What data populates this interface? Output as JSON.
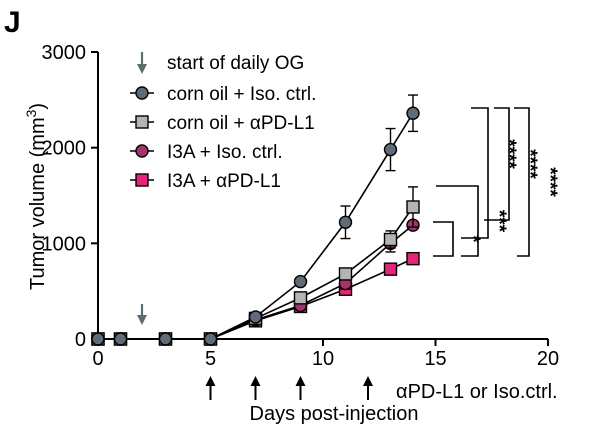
{
  "panel_label": "J",
  "chart_data": {
    "type": "line",
    "xlabel": "Days post-injection",
    "ylabel": "Tumor volume (mm",
    "ylabel_sup": "3",
    "ylabel_close": ")",
    "xlim": [
      0,
      20
    ],
    "ylim": [
      0,
      3000
    ],
    "xticks": [
      0,
      5,
      10,
      15,
      20
    ],
    "yticks": [
      0,
      1000,
      2000,
      3000
    ],
    "x": [
      0,
      1,
      3,
      5,
      7,
      9,
      11,
      13,
      14
    ],
    "series": [
      {
        "name": "corn oil + Iso. ctrl.",
        "marker": "circle",
        "color": "#5f6c78",
        "values": [
          0,
          0,
          0,
          0,
          230,
          600,
          1220,
          1980,
          2360
        ],
        "err": [
          0,
          0,
          0,
          0,
          25,
          40,
          170,
          220,
          190
        ]
      },
      {
        "name": "corn oil + αPD-L1",
        "marker": "square",
        "color": "#b4b4b4",
        "values": [
          0,
          0,
          0,
          0,
          215,
          430,
          680,
          1040,
          1380
        ],
        "err": [
          0,
          0,
          0,
          0,
          20,
          30,
          60,
          90,
          210
        ]
      },
      {
        "name": "I3A + Iso. ctrl.",
        "marker": "circle",
        "color": "#a8326c",
        "values": [
          0,
          0,
          0,
          0,
          200,
          350,
          580,
          1000,
          1190
        ],
        "err": [
          0,
          0,
          0,
          0,
          20,
          30,
          60,
          90,
          20
        ]
      },
      {
        "name": "I3A + αPD-L1",
        "marker": "square",
        "color": "#e8237b",
        "values": [
          0,
          0,
          0,
          0,
          190,
          340,
          520,
          730,
          840
        ],
        "err": [
          0,
          0,
          0,
          0,
          15,
          25,
          40,
          50,
          60
        ]
      }
    ],
    "og_start_label": "start of daily OG",
    "og_start_day": 1,
    "treatment_days": [
      5,
      7,
      9,
      12
    ],
    "treatment_label": "αPD-L1 or Iso.ctrl.",
    "significance": [
      "*",
      "***",
      "****",
      "****",
      "****"
    ],
    "legend_position": "top-left"
  }
}
